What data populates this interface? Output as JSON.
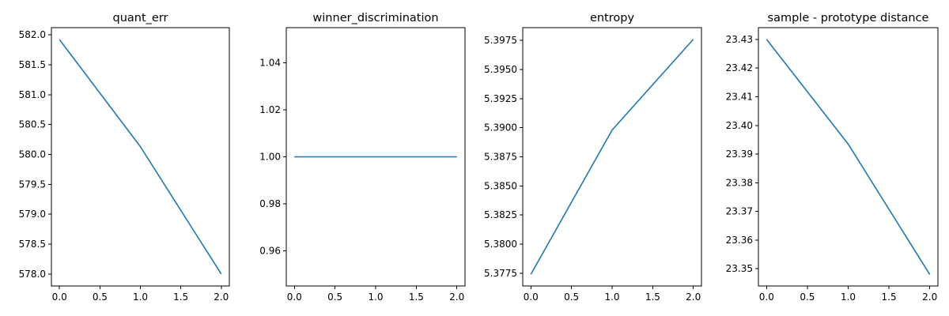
{
  "figure": {
    "line_color": "#1f77b4"
  },
  "chart_data": [
    {
      "type": "line",
      "title": "quant_err",
      "x": [
        0.0,
        1.0,
        2.0
      ],
      "values": [
        581.92,
        580.13,
        578.0
      ],
      "xlim": [
        -0.1,
        2.1
      ],
      "ylim": [
        577.8,
        582.12
      ],
      "xticks": [
        0.0,
        0.5,
        1.0,
        1.5,
        2.0
      ],
      "xtick_labels": [
        "0.0",
        "0.5",
        "1.0",
        "1.5",
        "2.0"
      ],
      "yticks": [
        578.0,
        578.5,
        579.0,
        579.5,
        580.0,
        580.5,
        581.0,
        581.5,
        582.0
      ],
      "ytick_labels": [
        "578.0",
        "578.5",
        "579.0",
        "579.5",
        "580.0",
        "580.5",
        "581.0",
        "581.5",
        "582.0"
      ],
      "grid": false,
      "legend": false
    },
    {
      "type": "line",
      "title": "winner_discrimination",
      "x": [
        0.0,
        1.0,
        2.0
      ],
      "values": [
        1.0,
        1.0,
        1.0
      ],
      "xlim": [
        -0.1,
        2.1
      ],
      "ylim": [
        0.945,
        1.055
      ],
      "xticks": [
        0.0,
        0.5,
        1.0,
        1.5,
        2.0
      ],
      "xtick_labels": [
        "0.0",
        "0.5",
        "1.0",
        "1.5",
        "2.0"
      ],
      "yticks": [
        0.96,
        0.98,
        1.0,
        1.02,
        1.04
      ],
      "ytick_labels": [
        "0.96",
        "0.98",
        "1.00",
        "1.02",
        "1.04"
      ],
      "grid": false,
      "legend": false
    },
    {
      "type": "line",
      "title": "entropy",
      "x": [
        0.0,
        1.0,
        2.0
      ],
      "values": [
        5.3774,
        5.3898,
        5.3976
      ],
      "xlim": [
        -0.1,
        2.1
      ],
      "ylim": [
        5.3764,
        5.3986
      ],
      "xticks": [
        0.0,
        0.5,
        1.0,
        1.5,
        2.0
      ],
      "xtick_labels": [
        "0.0",
        "0.5",
        "1.0",
        "1.5",
        "2.0"
      ],
      "yticks": [
        5.3775,
        5.38,
        5.3825,
        5.385,
        5.3875,
        5.39,
        5.3925,
        5.395,
        5.3975
      ],
      "ytick_labels": [
        "5.3775",
        "5.3800",
        "5.3825",
        "5.3850",
        "5.3875",
        "5.3900",
        "5.3925",
        "5.3950",
        "5.3975"
      ],
      "grid": false,
      "legend": false
    },
    {
      "type": "line",
      "title": "sample - prototype distance",
      "x": [
        0.0,
        1.0,
        2.0
      ],
      "values": [
        23.43,
        23.3935,
        23.348
      ],
      "xlim": [
        -0.1,
        2.1
      ],
      "ylim": [
        23.344,
        23.4341
      ],
      "xticks": [
        0.0,
        0.5,
        1.0,
        1.5,
        2.0
      ],
      "xtick_labels": [
        "0.0",
        "0.5",
        "1.0",
        "1.5",
        "2.0"
      ],
      "yticks": [
        23.35,
        23.36,
        23.37,
        23.38,
        23.39,
        23.4,
        23.41,
        23.42,
        23.43
      ],
      "ytick_labels": [
        "23.35",
        "23.36",
        "23.37",
        "23.38",
        "23.39",
        "23.40",
        "23.41",
        "23.42",
        "23.43"
      ],
      "grid": false,
      "legend": false
    }
  ]
}
